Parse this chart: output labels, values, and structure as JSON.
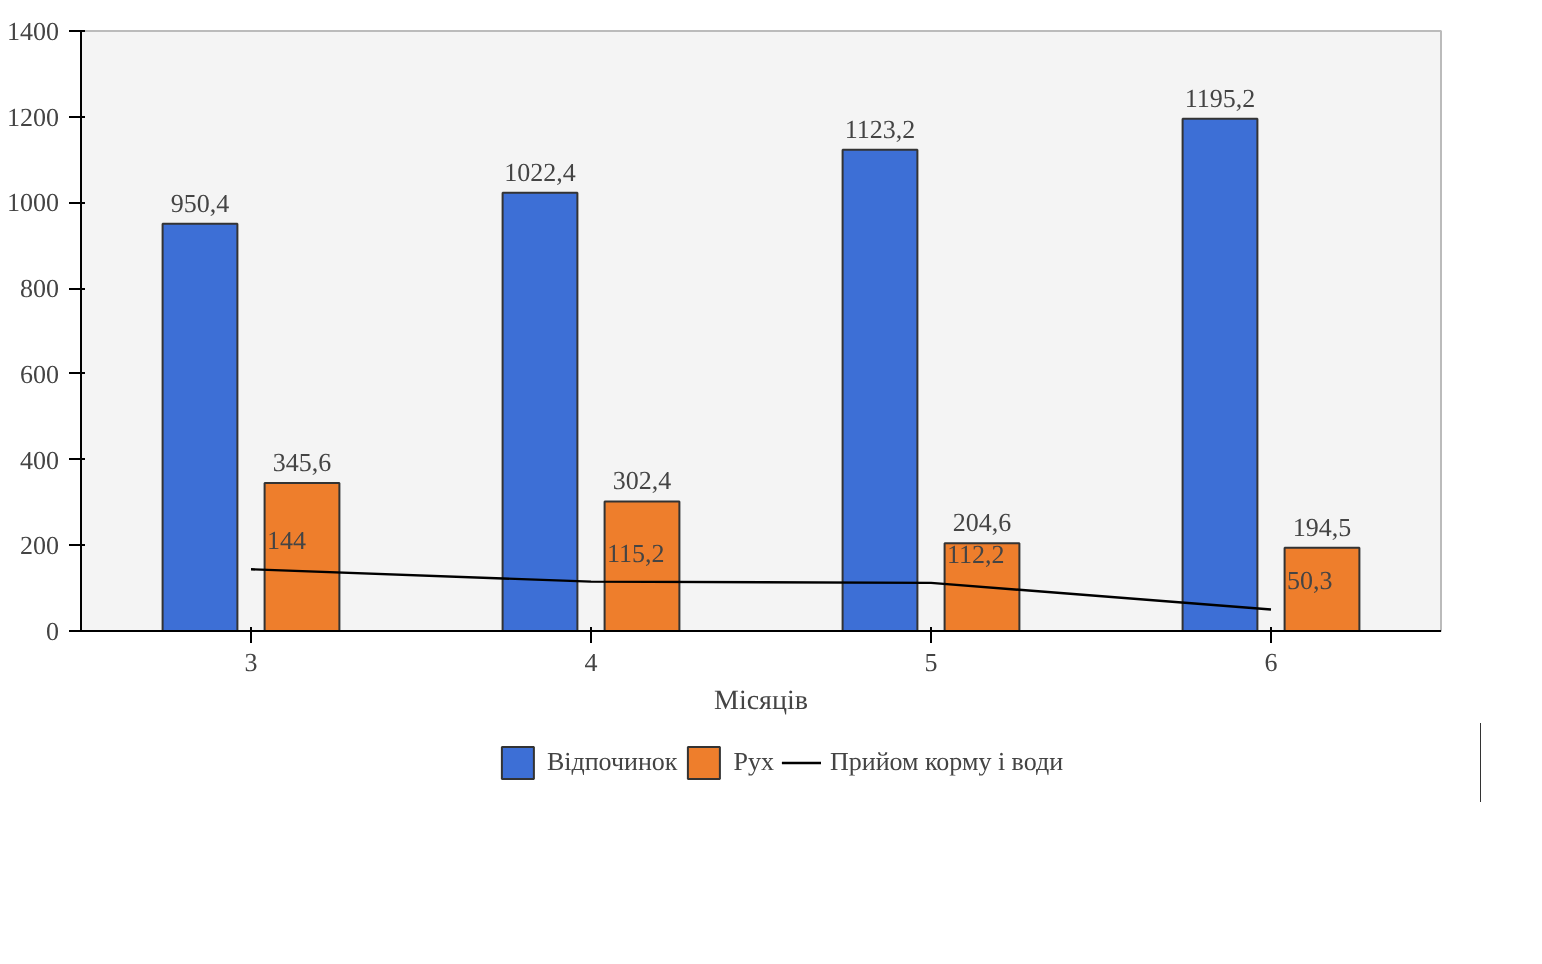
{
  "chart_data": {
    "type": "bar",
    "xlabel": "Місяців",
    "categories": [
      "3",
      "4",
      "5",
      "6"
    ],
    "ylim": [
      0,
      1400
    ],
    "yticks": [
      0,
      200,
      400,
      600,
      800,
      1000,
      1200,
      1400
    ],
    "grid": false,
    "legend": "bottom",
    "series": [
      {
        "name": "Відпочинок",
        "color": "#3d6fd6",
        "values": [
          950.4,
          1022.4,
          1123.2,
          1195.2
        ],
        "value_labels": [
          "950,4",
          "1022,4",
          "1123,2",
          "1195,2"
        ]
      },
      {
        "name": "Рух",
        "color": "#ee7e2c",
        "values": [
          345.6,
          302.4,
          204.6,
          194.5
        ],
        "value_labels": [
          "345,6",
          "302,4",
          "204,6",
          "194,5"
        ]
      },
      {
        "name": "Прийом корму і води",
        "type": "line",
        "color": "#000000",
        "values": [
          144,
          115.2,
          112.2,
          50.3
        ],
        "value_labels": [
          "144",
          "115,2",
          "112,2",
          "50,3"
        ]
      }
    ]
  }
}
